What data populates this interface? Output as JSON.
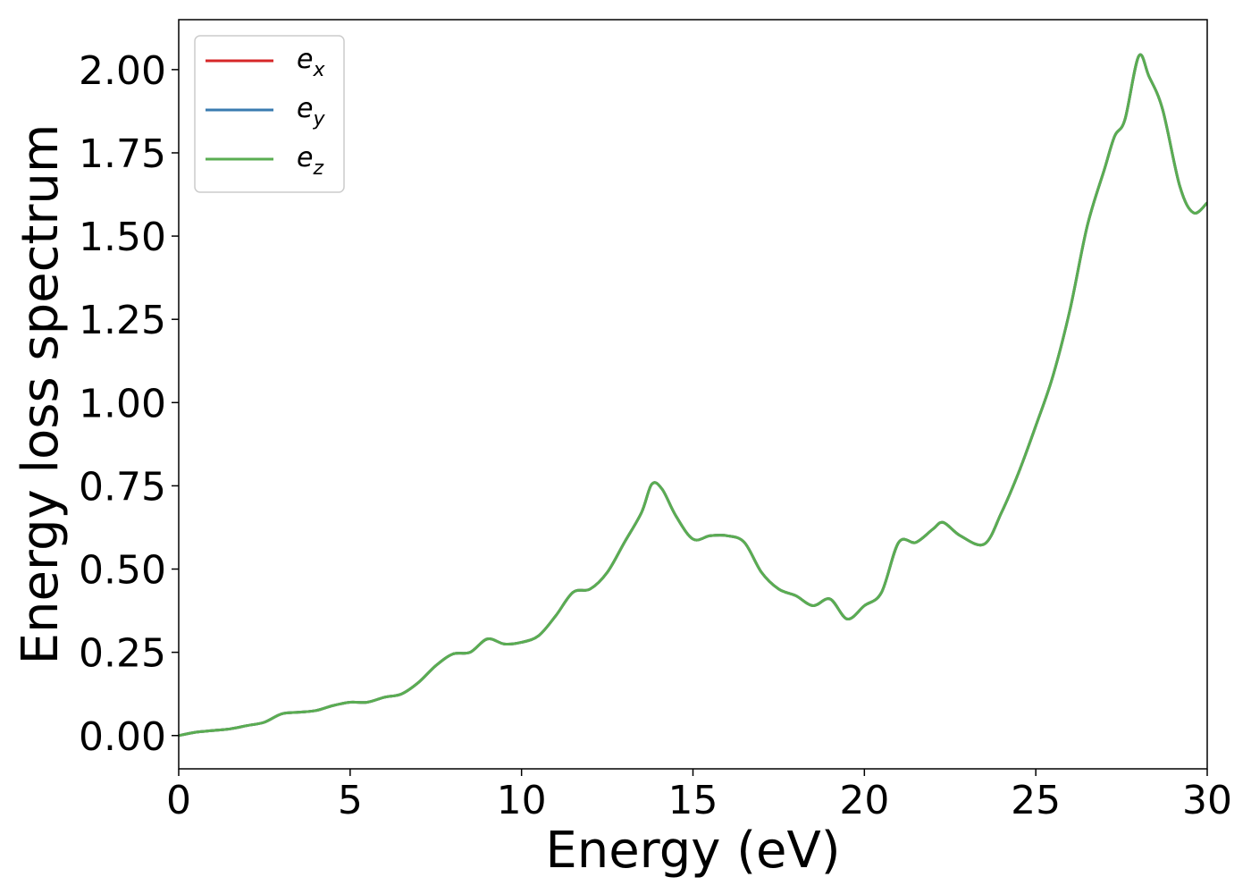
{
  "chart_data": {
    "type": "line",
    "xlabel": "Energy (eV)",
    "ylabel": "Energy loss spectrum",
    "xlim": [
      0,
      30
    ],
    "ylim": [
      -0.1,
      2.15
    ],
    "xticks": [
      0,
      5,
      10,
      15,
      20,
      25,
      30
    ],
    "yticks": [
      0.0,
      0.25,
      0.5,
      0.75,
      1.0,
      1.25,
      1.5,
      1.75,
      2.0
    ],
    "xtick_labels": [
      "0",
      "5",
      "10",
      "15",
      "20",
      "25",
      "30"
    ],
    "ytick_labels": [
      "0.00",
      "0.25",
      "0.50",
      "0.75",
      "1.00",
      "1.25",
      "1.50",
      "1.75",
      "2.00"
    ],
    "grid": false,
    "legend_position": "top-left",
    "series": [
      {
        "name": "e_x",
        "legend_main": "e",
        "legend_sub": "x",
        "color": "#d62728",
        "x": [
          0,
          0.5,
          1,
          1.5,
          2,
          2.5,
          3,
          3.5,
          4,
          4.5,
          5,
          5.5,
          6,
          6.5,
          7,
          7.5,
          8,
          8.5,
          9,
          9.5,
          10,
          10.5,
          11,
          11.5,
          12,
          12.5,
          13,
          13.5,
          13.8,
          14.1,
          14.5,
          15,
          15.5,
          16,
          16.5,
          17,
          17.5,
          18,
          18.5,
          19,
          19.5,
          20,
          20.5,
          21,
          21.5,
          22,
          22.3,
          22.8,
          23.5,
          24,
          24.5,
          25,
          25.5,
          26,
          26.5,
          27,
          27.3,
          27.6,
          28,
          28.3,
          28.7,
          29.2,
          29.6,
          30
        ],
        "y": [
          0.0,
          0.01,
          0.015,
          0.02,
          0.03,
          0.04,
          0.065,
          0.07,
          0.075,
          0.09,
          0.1,
          0.1,
          0.115,
          0.125,
          0.16,
          0.21,
          0.245,
          0.25,
          0.29,
          0.275,
          0.28,
          0.3,
          0.36,
          0.43,
          0.44,
          0.49,
          0.58,
          0.67,
          0.755,
          0.74,
          0.66,
          0.59,
          0.6,
          0.6,
          0.58,
          0.49,
          0.44,
          0.42,
          0.39,
          0.41,
          0.35,
          0.39,
          0.43,
          0.58,
          0.58,
          0.62,
          0.64,
          0.6,
          0.575,
          0.67,
          0.79,
          0.93,
          1.08,
          1.28,
          1.53,
          1.7,
          1.8,
          1.85,
          2.04,
          1.98,
          1.88,
          1.65,
          1.57,
          1.6
        ]
      },
      {
        "name": "e_y",
        "legend_main": "e",
        "legend_sub": "y",
        "color": "#3a7bb0",
        "x": [
          0,
          0.5,
          1,
          1.5,
          2,
          2.5,
          3,
          3.5,
          4,
          4.5,
          5,
          5.5,
          6,
          6.5,
          7,
          7.5,
          8,
          8.5,
          9,
          9.5,
          10,
          10.5,
          11,
          11.5,
          12,
          12.5,
          13,
          13.5,
          13.8,
          14.1,
          14.5,
          15,
          15.5,
          16,
          16.5,
          17,
          17.5,
          18,
          18.5,
          19,
          19.5,
          20,
          20.5,
          21,
          21.5,
          22,
          22.3,
          22.8,
          23.5,
          24,
          24.5,
          25,
          25.5,
          26,
          26.5,
          27,
          27.3,
          27.6,
          28,
          28.3,
          28.7,
          29.2,
          29.6,
          30
        ],
        "y": [
          0.0,
          0.01,
          0.015,
          0.02,
          0.03,
          0.04,
          0.065,
          0.07,
          0.075,
          0.09,
          0.1,
          0.1,
          0.115,
          0.125,
          0.16,
          0.21,
          0.245,
          0.25,
          0.29,
          0.275,
          0.28,
          0.3,
          0.36,
          0.43,
          0.44,
          0.49,
          0.58,
          0.67,
          0.755,
          0.74,
          0.66,
          0.59,
          0.6,
          0.6,
          0.58,
          0.49,
          0.44,
          0.42,
          0.39,
          0.41,
          0.35,
          0.39,
          0.43,
          0.58,
          0.58,
          0.62,
          0.64,
          0.6,
          0.575,
          0.67,
          0.79,
          0.93,
          1.08,
          1.28,
          1.53,
          1.7,
          1.8,
          1.85,
          2.04,
          1.98,
          1.88,
          1.65,
          1.57,
          1.6
        ]
      },
      {
        "name": "e_z",
        "legend_main": "e",
        "legend_sub": "z",
        "color": "#5aad52",
        "x": [
          0,
          0.5,
          1,
          1.5,
          2,
          2.5,
          3,
          3.5,
          4,
          4.5,
          5,
          5.5,
          6,
          6.5,
          7,
          7.5,
          8,
          8.5,
          9,
          9.5,
          10,
          10.5,
          11,
          11.5,
          12,
          12.5,
          13,
          13.5,
          13.8,
          14.1,
          14.5,
          15,
          15.5,
          16,
          16.5,
          17,
          17.5,
          18,
          18.5,
          19,
          19.5,
          20,
          20.5,
          21,
          21.5,
          22,
          22.3,
          22.8,
          23.5,
          24,
          24.5,
          25,
          25.5,
          26,
          26.5,
          27,
          27.3,
          27.6,
          28,
          28.3,
          28.7,
          29.2,
          29.6,
          30
        ],
        "y": [
          0.0,
          0.01,
          0.015,
          0.02,
          0.03,
          0.04,
          0.065,
          0.07,
          0.075,
          0.09,
          0.1,
          0.1,
          0.115,
          0.125,
          0.16,
          0.21,
          0.245,
          0.25,
          0.29,
          0.275,
          0.28,
          0.3,
          0.36,
          0.43,
          0.44,
          0.49,
          0.58,
          0.67,
          0.755,
          0.74,
          0.66,
          0.59,
          0.6,
          0.6,
          0.58,
          0.49,
          0.44,
          0.42,
          0.39,
          0.41,
          0.35,
          0.39,
          0.43,
          0.58,
          0.58,
          0.62,
          0.64,
          0.6,
          0.575,
          0.67,
          0.79,
          0.93,
          1.08,
          1.28,
          1.53,
          1.7,
          1.8,
          1.85,
          2.04,
          1.98,
          1.88,
          1.65,
          1.57,
          1.6
        ]
      }
    ]
  }
}
